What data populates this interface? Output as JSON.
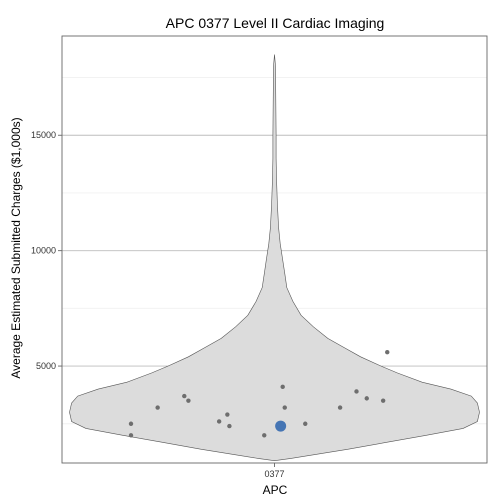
{
  "chart_data": {
    "type": "violin",
    "title": "APC 0377 Level II Cardiac Imaging",
    "xlabel": "APC",
    "ylabel": "Average Estimated Submitted Charges ($1,000s)",
    "categories": [
      "0377"
    ],
    "y_ticks": [
      5000,
      10000,
      15000
    ],
    "ylim": [
      800,
      19300
    ],
    "grid": true,
    "violin_profile": [
      {
        "y": 900,
        "w": 0.0
      },
      {
        "y": 1000,
        "w": 0.08
      },
      {
        "y": 1200,
        "w": 0.22
      },
      {
        "y": 1400,
        "w": 0.36
      },
      {
        "y": 1700,
        "w": 0.55
      },
      {
        "y": 2000,
        "w": 0.74
      },
      {
        "y": 2300,
        "w": 0.92
      },
      {
        "y": 2600,
        "w": 0.99
      },
      {
        "y": 3000,
        "w": 1.0
      },
      {
        "y": 3400,
        "w": 0.99
      },
      {
        "y": 3700,
        "w": 0.96
      },
      {
        "y": 4000,
        "w": 0.86
      },
      {
        "y": 4300,
        "w": 0.72
      },
      {
        "y": 4700,
        "w": 0.6
      },
      {
        "y": 5000,
        "w": 0.52
      },
      {
        "y": 5400,
        "w": 0.42
      },
      {
        "y": 5800,
        "w": 0.34
      },
      {
        "y": 6200,
        "w": 0.26
      },
      {
        "y": 6700,
        "w": 0.19
      },
      {
        "y": 7200,
        "w": 0.13
      },
      {
        "y": 7800,
        "w": 0.09
      },
      {
        "y": 8400,
        "w": 0.06
      },
      {
        "y": 9000,
        "w": 0.05
      },
      {
        "y": 9600,
        "w": 0.04
      },
      {
        "y": 10300,
        "w": 0.028
      },
      {
        "y": 11000,
        "w": 0.02
      },
      {
        "y": 12000,
        "w": 0.014
      },
      {
        "y": 13000,
        "w": 0.01
      },
      {
        "y": 14000,
        "w": 0.008
      },
      {
        "y": 15000,
        "w": 0.008
      },
      {
        "y": 16000,
        "w": 0.007
      },
      {
        "y": 17000,
        "w": 0.006
      },
      {
        "y": 18000,
        "w": 0.005
      },
      {
        "y": 18500,
        "w": 0.0
      }
    ],
    "points": [
      {
        "x_offset": -0.7,
        "y": 2000,
        "highlight": false
      },
      {
        "x_offset": -0.57,
        "y": 3200,
        "highlight": false
      },
      {
        "x_offset": -0.44,
        "y": 3700,
        "highlight": false
      },
      {
        "x_offset": -0.42,
        "y": 3500,
        "highlight": false
      },
      {
        "x_offset": -0.7,
        "y": 2500,
        "highlight": false
      },
      {
        "x_offset": -0.27,
        "y": 2600,
        "highlight": false
      },
      {
        "x_offset": -0.23,
        "y": 2900,
        "highlight": false
      },
      {
        "x_offset": -0.22,
        "y": 2400,
        "highlight": false
      },
      {
        "x_offset": -0.05,
        "y": 2000,
        "highlight": false
      },
      {
        "x_offset": 0.03,
        "y": 2400,
        "highlight": true
      },
      {
        "x_offset": 0.04,
        "y": 4100,
        "highlight": false
      },
      {
        "x_offset": 0.05,
        "y": 3200,
        "highlight": false
      },
      {
        "x_offset": 0.15,
        "y": 2500,
        "highlight": false
      },
      {
        "x_offset": 0.32,
        "y": 3200,
        "highlight": false
      },
      {
        "x_offset": 0.4,
        "y": 3900,
        "highlight": false
      },
      {
        "x_offset": 0.45,
        "y": 3600,
        "highlight": false
      },
      {
        "x_offset": 0.53,
        "y": 3500,
        "highlight": false
      },
      {
        "x_offset": 0.55,
        "y": 5600,
        "highlight": false
      }
    ]
  }
}
